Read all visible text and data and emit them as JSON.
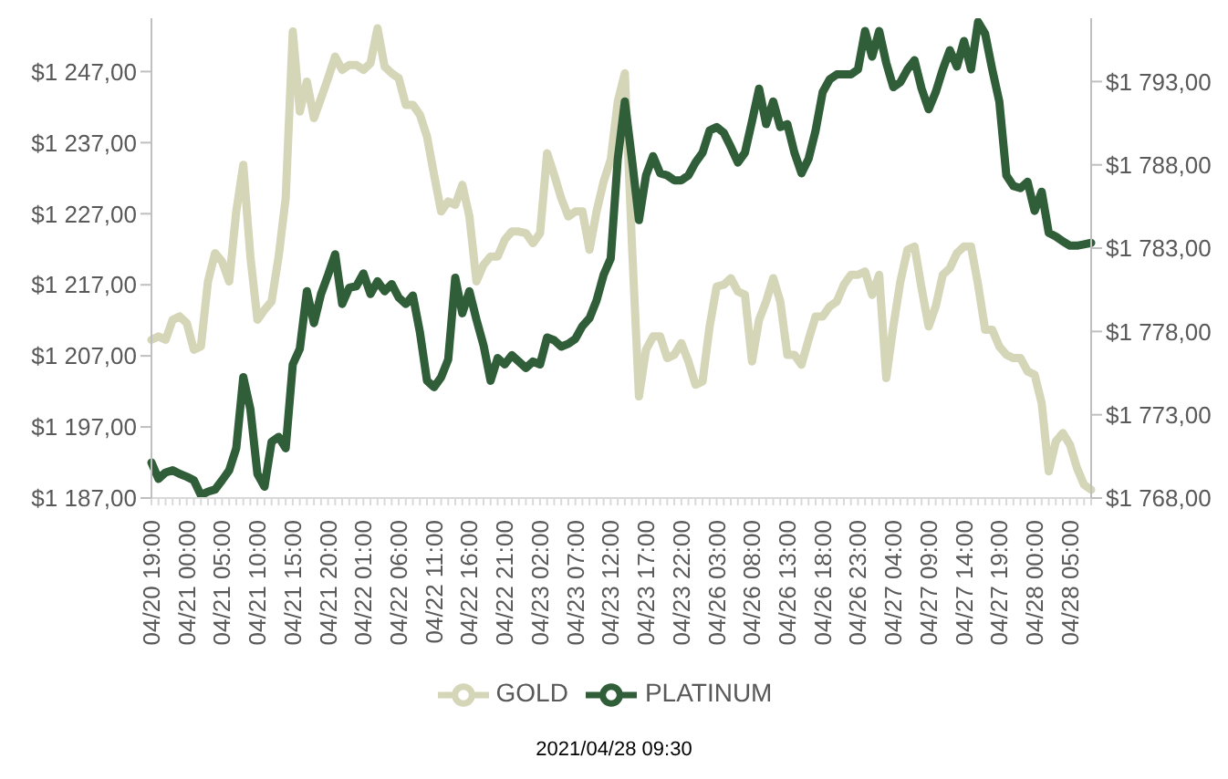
{
  "chart_data": {
    "type": "line",
    "categories": [
      "04/20 19:00",
      null,
      null,
      null,
      null,
      "04/21 00:00",
      null,
      null,
      null,
      null,
      "04/21 05:00",
      null,
      null,
      null,
      null,
      "04/21 10:00",
      null,
      null,
      null,
      null,
      "04/21 15:00",
      null,
      null,
      null,
      null,
      "04/21 20:00",
      null,
      null,
      null,
      null,
      "04/22 01:00",
      null,
      null,
      null,
      null,
      "04/22 06:00",
      null,
      null,
      null,
      null,
      "04/22 11:00",
      null,
      null,
      null,
      null,
      "04/22 16:00",
      null,
      null,
      null,
      null,
      "04/22 21:00",
      null,
      null,
      null,
      null,
      "04/23 02:00",
      null,
      null,
      null,
      null,
      "04/23 07:00",
      null,
      null,
      null,
      null,
      "04/23 12:00",
      null,
      null,
      null,
      null,
      "04/23 17:00",
      null,
      null,
      null,
      null,
      "04/23 22:00",
      null,
      null,
      null,
      null,
      "04/26 03:00",
      null,
      null,
      null,
      null,
      "04/26 08:00",
      null,
      null,
      null,
      null,
      "04/26 13:00",
      null,
      null,
      null,
      null,
      "04/26 18:00",
      null,
      null,
      null,
      null,
      "04/26 23:00",
      null,
      null,
      null,
      null,
      "04/27 04:00",
      null,
      null,
      null,
      null,
      "04/27 09:00",
      null,
      null,
      null,
      null,
      "04/27 14:00",
      null,
      null,
      null,
      null,
      "04/27 19:00",
      null,
      null,
      null,
      null,
      "04/28 00:00",
      null,
      null,
      null,
      null,
      "04/28 05:00",
      null,
      null,
      null
    ],
    "series": [
      {
        "name": "GOLD",
        "color": "#d5d6b8",
        "axis": "y2",
        "values": [
          1777.5,
          1777.7,
          1777.5,
          1778.7,
          1778.9,
          1778.5,
          1776.9,
          1777.1,
          1781.0,
          1782.7,
          1782.2,
          1781.0,
          1785.2,
          1788.0,
          1782.5,
          1778.7,
          1779.3,
          1779.8,
          1782.5,
          1786.0,
          1796.0,
          1791.2,
          1793.0,
          1790.8,
          1792.0,
          1793.2,
          1794.5,
          1793.7,
          1794.0,
          1794.0,
          1793.7,
          1794.1,
          1796.2,
          1793.9,
          1793.5,
          1793.2,
          1791.6,
          1791.6,
          1791.0,
          1789.7,
          1787.4,
          1785.2,
          1785.8,
          1785.6,
          1786.8,
          1784.9,
          1781.0,
          1782.0,
          1782.5,
          1782.5,
          1783.5,
          1784.0,
          1784.0,
          1783.9,
          1783.3,
          1783.9,
          1788.7,
          1787.4,
          1786.0,
          1784.9,
          1785.2,
          1785.2,
          1782.9,
          1785.2,
          1787.0,
          1788.3,
          1791.8,
          1793.5,
          1783.3,
          1774.1,
          1776.9,
          1777.7,
          1777.7,
          1776.4,
          1776.6,
          1777.3,
          1776.2,
          1774.8,
          1775.0,
          1778.3,
          1780.7,
          1780.8,
          1781.2,
          1780.4,
          1780.2,
          1776.2,
          1778.7,
          1779.8,
          1781.2,
          1779.8,
          1776.6,
          1776.6,
          1776.0,
          1777.5,
          1778.9,
          1778.9,
          1779.5,
          1779.8,
          1780.8,
          1781.4,
          1781.4,
          1781.6,
          1780.2,
          1781.4,
          1775.2,
          1778.3,
          1781.0,
          1782.9,
          1783.1,
          1780.6,
          1778.3,
          1779.5,
          1781.4,
          1781.8,
          1782.7,
          1783.1,
          1783.1,
          1780.8,
          1778.1,
          1778.1,
          1777.1,
          1776.6,
          1776.4,
          1776.4,
          1775.6,
          1775.4,
          1773.7,
          1769.6,
          1771.4,
          1771.9,
          1771.2,
          1769.8,
          1768.8,
          1768.5
        ]
      },
      {
        "name": "PLATINUM",
        "color": "#2f5e38",
        "values": [
          1192.0,
          1189.7,
          1190.6,
          1190.9,
          1190.4,
          1190.0,
          1189.5,
          1187.4,
          1187.9,
          1188.2,
          1189.5,
          1190.9,
          1194.0,
          1204.0,
          1199.5,
          1190.4,
          1188.6,
          1194.9,
          1195.6,
          1194.0,
          1205.8,
          1208.0,
          1216.1,
          1211.6,
          1215.7,
          1218.4,
          1221.3,
          1214.3,
          1216.6,
          1216.8,
          1218.6,
          1215.7,
          1217.5,
          1216.1,
          1217.1,
          1215.2,
          1214.3,
          1215.5,
          1210.3,
          1203.5,
          1202.6,
          1204.0,
          1206.5,
          1218.0,
          1213.0,
          1216.1,
          1212.1,
          1208.5,
          1203.5,
          1206.7,
          1205.8,
          1207.1,
          1206.2,
          1205.3,
          1206.2,
          1205.8,
          1209.6,
          1209.2,
          1208.3,
          1208.7,
          1209.4,
          1211.2,
          1212.3,
          1214.8,
          1218.4,
          1220.7,
          1234.7,
          1242.8,
          1234.7,
          1226.1,
          1232.4,
          1235.1,
          1232.7,
          1232.4,
          1231.7,
          1231.7,
          1232.4,
          1234.2,
          1235.6,
          1238.7,
          1239.2,
          1238.4,
          1236.4,
          1234.2,
          1235.6,
          1240.0,
          1244.6,
          1239.6,
          1242.8,
          1239.2,
          1239.6,
          1235.6,
          1232.7,
          1234.7,
          1238.7,
          1244.1,
          1245.9,
          1246.6,
          1246.6,
          1246.6,
          1247.3,
          1252.7,
          1249.1,
          1252.7,
          1248.2,
          1244.8,
          1245.5,
          1247.3,
          1248.6,
          1244.6,
          1241.7,
          1244.1,
          1247.3,
          1250.0,
          1247.7,
          1251.3,
          1247.3,
          1254.0,
          1252.3,
          1247.3,
          1242.8,
          1232.4,
          1230.9,
          1230.6,
          1231.5,
          1227.4,
          1230.1,
          1224.3,
          1223.8,
          1223.1,
          1222.5,
          1222.5,
          1222.7,
          1222.9
        ]
      }
    ],
    "ylim": [
      1187,
      1254.5
    ],
    "yticks": [
      {
        "value": 1187,
        "label": "$1 187,00"
      },
      {
        "value": 1197,
        "label": "$1 197,00"
      },
      {
        "value": 1207,
        "label": "$1 207,00"
      },
      {
        "value": 1217,
        "label": "$1 217,00"
      },
      {
        "value": 1227,
        "label": "$1 227,00"
      },
      {
        "value": 1237,
        "label": "$1 237,00"
      },
      {
        "value": 1247,
        "label": "$1 247,00"
      }
    ],
    "y2lim": [
      1768,
      1796.8
    ],
    "y2ticks": [
      {
        "value": 1768,
        "label": "$1 768,00"
      },
      {
        "value": 1773,
        "label": "$1 773,00"
      },
      {
        "value": 1778,
        "label": "$1 778,00"
      },
      {
        "value": 1783,
        "label": "$1 783,00"
      },
      {
        "value": 1788,
        "label": "$1 788,00"
      },
      {
        "value": 1793,
        "label": "$1 793,00"
      }
    ],
    "legend": "bottom",
    "annotations": [
      "2021/04/28 09:30"
    ]
  }
}
